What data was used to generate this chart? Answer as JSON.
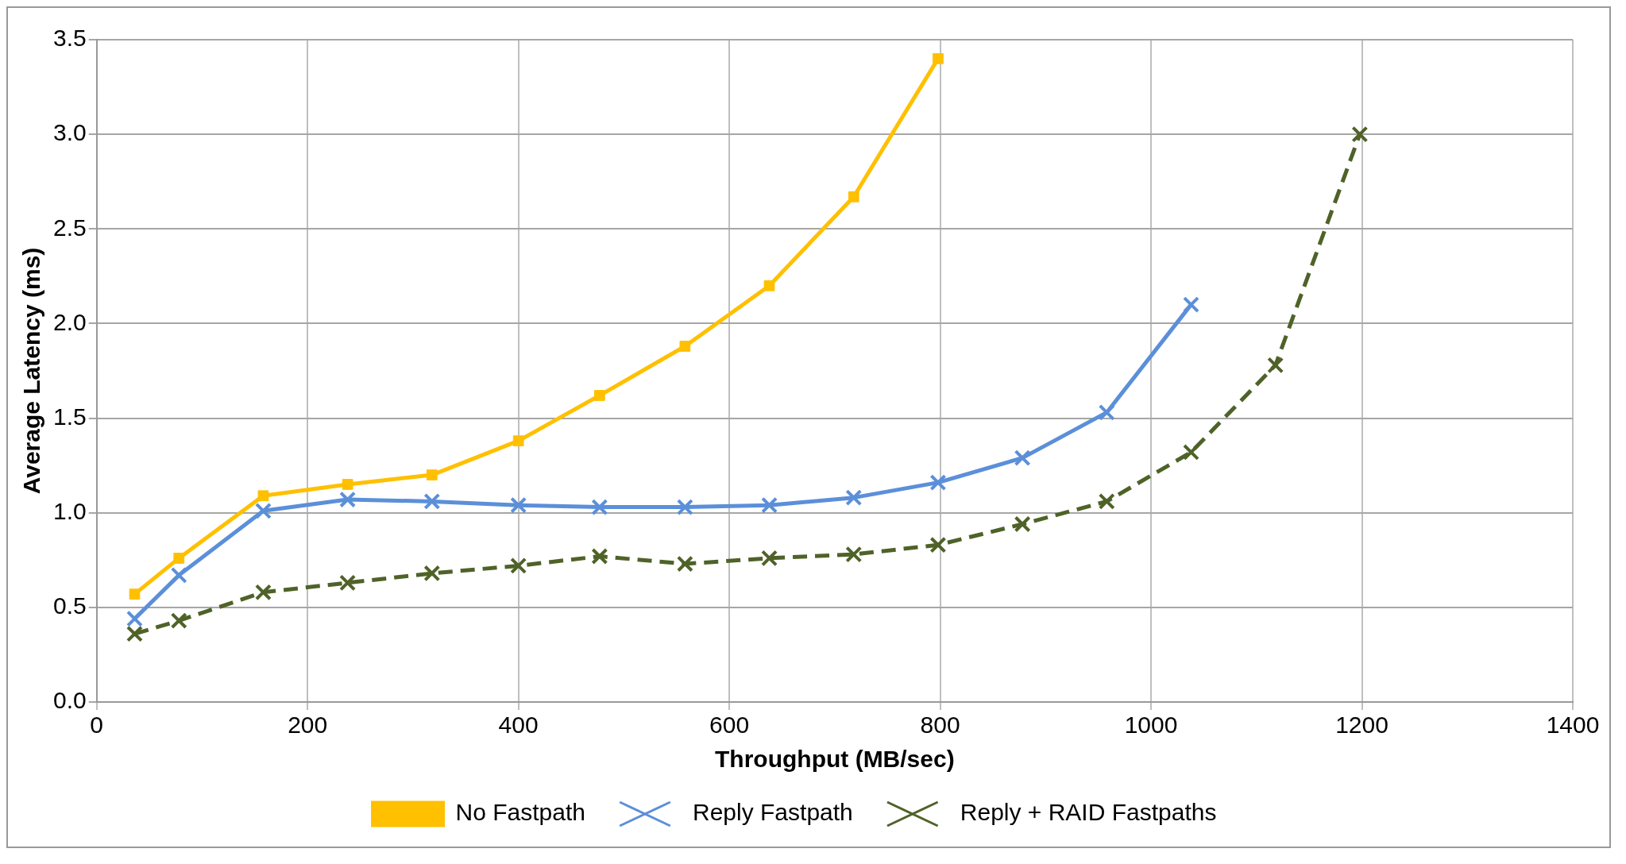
{
  "chart_data": {
    "type": "line",
    "xlabel": "Throughput (MB/sec)",
    "ylabel": "Average Latency (ms)",
    "xlim": [
      0,
      1400
    ],
    "xticks": [
      0,
      200,
      400,
      600,
      800,
      1000,
      1200,
      1400
    ],
    "ylim": [
      0,
      3.5
    ],
    "yticks": [
      {
        "value": 0,
        "label": "0.0"
      },
      {
        "value": 0.5,
        "label": "0.5"
      },
      {
        "value": 1,
        "label": "1.0"
      },
      {
        "value": 1.5,
        "label": "1.5"
      },
      {
        "value": 2,
        "label": "2.0"
      },
      {
        "value": 2.5,
        "label": "2.5"
      },
      {
        "value": 3,
        "label": "3.0"
      },
      {
        "value": 3.5,
        "label": "3.5"
      }
    ],
    "grid": true,
    "legend": "bottom",
    "series": [
      {
        "name": "No Fastpath",
        "color": "#ffc000",
        "marker": "square",
        "line_style": "solid",
        "x": [
          36,
          78,
          158,
          238,
          318,
          400,
          477,
          558,
          638,
          718,
          798
        ],
        "values": [
          0.57,
          0.76,
          1.09,
          1.15,
          1.2,
          1.38,
          1.62,
          1.88,
          2.2,
          2.67,
          3.4
        ]
      },
      {
        "name": "Reply Fastpath",
        "color": "#5b8fd9",
        "marker": "cross",
        "line_style": "solid",
        "x": [
          36,
          78,
          158,
          238,
          318,
          400,
          477,
          558,
          638,
          718,
          798,
          878,
          958,
          1038
        ],
        "values": [
          0.44,
          0.67,
          1.01,
          1.07,
          1.06,
          1.04,
          1.03,
          1.03,
          1.04,
          1.08,
          1.16,
          1.29,
          1.53,
          2.1
        ]
      },
      {
        "name": "Reply + RAID Fastpaths",
        "color": "#4f6228",
        "marker": "cross",
        "line_style": "dashed",
        "x": [
          36,
          78,
          158,
          238,
          318,
          400,
          477,
          558,
          638,
          718,
          798,
          878,
          958,
          1038,
          1118,
          1198
        ],
        "values": [
          0.36,
          0.43,
          0.58,
          0.63,
          0.68,
          0.72,
          0.77,
          0.73,
          0.76,
          0.78,
          0.83,
          0.94,
          1.06,
          1.32,
          1.78,
          3.0
        ]
      }
    ]
  }
}
